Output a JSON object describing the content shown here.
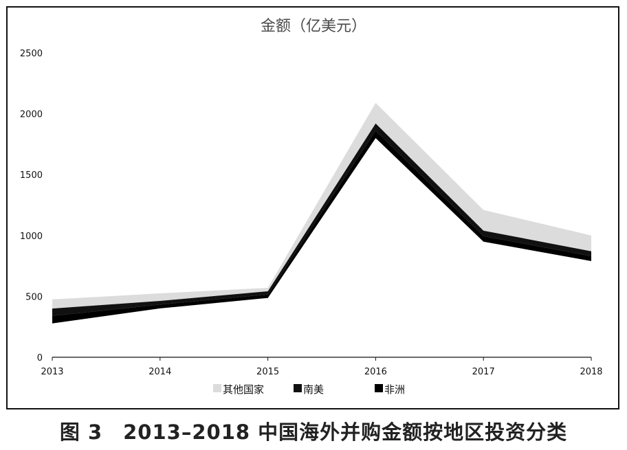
{
  "figure": {
    "caption": "图 3　2013–2018 中国海外并购金额按地区投资分类"
  },
  "chart_data": {
    "type": "area",
    "title": "金额（亿美元）",
    "x": [
      2013,
      2014,
      2015,
      2016,
      2017,
      2018
    ],
    "ylim": [
      0,
      2500
    ],
    "yticks": [
      0,
      500,
      1000,
      1500,
      2000,
      2500
    ],
    "grid": false,
    "legend": "bottom",
    "series": [
      {
        "name": "其他国家",
        "color": "#dcdcdc",
        "lower": [
          400,
          463,
          542,
          1920,
          1040,
          870
        ],
        "upper": [
          475,
          525,
          570,
          2090,
          1210,
          1000
        ]
      },
      {
        "name": "南美",
        "color": "#111111",
        "lower": [
          340,
          432,
          515,
          1860,
          995,
          830
        ],
        "upper": [
          400,
          463,
          542,
          1920,
          1040,
          870
        ]
      },
      {
        "name": "非洲",
        "color": "#000000",
        "lower": [
          278,
          401,
          487,
          1800,
          950,
          790
        ],
        "upper": [
          340,
          432,
          515,
          1860,
          995,
          830
        ]
      }
    ]
  }
}
